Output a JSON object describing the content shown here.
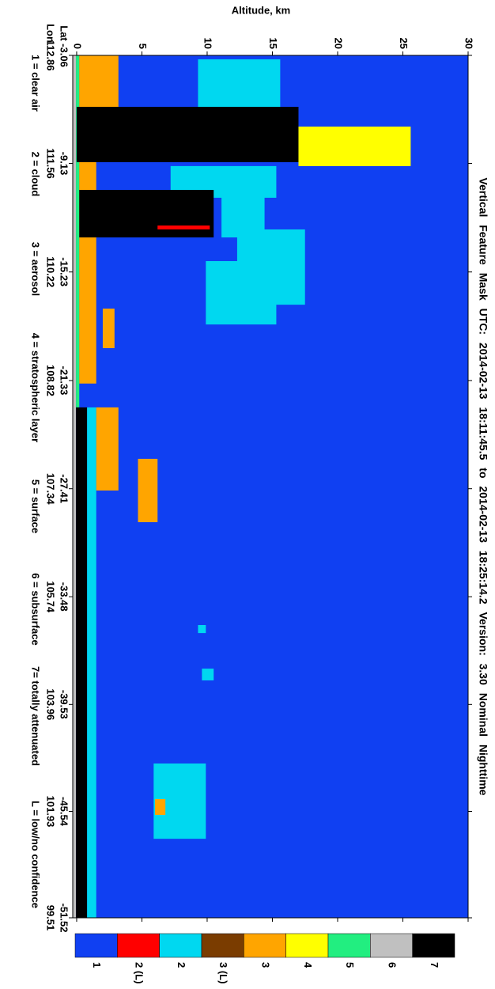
{
  "chart_data": {
    "type": "curtain",
    "title": "Vertical Feature Mask UTC: 2014-02-13 18:11:45.5 to 2014-02-13 18:25:14.2 Version: 3.30 Nominal Nighttime",
    "ylabel": "Altitude, km",
    "xlabel": [
      "Lat",
      "Lon"
    ],
    "xlim": [
      -3.06,
      -51.52
    ],
    "xticks": [
      -3.06,
      -9.13,
      -15.23,
      -21.33,
      -27.41,
      -33.48,
      -39.53,
      -45.54,
      -51.52
    ],
    "lon_ticks": [
      112.86,
      111.56,
      110.22,
      108.82,
      107.34,
      105.74,
      103.96,
      101.93,
      99.51
    ],
    "ylim": [
      -0.3,
      30
    ],
    "yticks": [
      0,
      5,
      10,
      15,
      20,
      25,
      30
    ],
    "legend_text": [
      "1 = clear air",
      "2 = cloud",
      "3 = aerosol",
      "4 = stratospheric layer",
      "5 = surface",
      "6 = subsurface",
      "7= totally attenuated",
      "L = low/no confidence"
    ],
    "colorbar": [
      {
        "label": "1",
        "color": "#1040f2"
      },
      {
        "label": "2 (L)",
        "color": "#ff0000"
      },
      {
        "label": "2",
        "color": "#00d8f0"
      },
      {
        "label": "3 (L)",
        "color": "#7a3c00"
      },
      {
        "label": "3",
        "color": "#ffa500"
      },
      {
        "label": "4",
        "color": "#ffff00"
      },
      {
        "label": "5",
        "color": "#22ee80"
      },
      {
        "label": "6",
        "color": "#c0c0c0"
      },
      {
        "label": "7",
        "color": "#000000"
      }
    ],
    "features": [
      {
        "class": 7,
        "lat": [
          -3.06,
          -51.52
        ],
        "alt": [
          -0.3,
          -0.05
        ]
      },
      {
        "class": 6,
        "lat": [
          -3.06,
          -22.84
        ],
        "alt": [
          -0.05,
          0.2
        ]
      },
      {
        "class": 4,
        "lat": [
          -3.06,
          -5.95
        ],
        "alt": [
          0.2,
          3.2
        ]
      },
      {
        "class": 4,
        "lat": [
          -9.06,
          -21.5
        ],
        "alt": [
          0.2,
          1.5
        ]
      },
      {
        "class": 2,
        "lat": [
          -3.28,
          -5.95
        ],
        "alt": [
          9.3,
          15.6
        ]
      },
      {
        "class": 8,
        "lat": [
          -5.95,
          -9.06
        ],
        "alt": [
          0,
          17
        ]
      },
      {
        "class": 5,
        "lat": [
          -7.06,
          -9.28
        ],
        "alt": [
          17,
          25.6
        ]
      },
      {
        "class": 2,
        "lat": [
          -9.28,
          -11.06
        ],
        "alt": [
          7.2,
          15.3
        ]
      },
      {
        "class": 2,
        "lat": [
          -10.17,
          -13.29
        ],
        "alt": [
          11.1,
          14.4
        ]
      },
      {
        "class": 8,
        "lat": [
          -10.62,
          -13.29
        ],
        "alt": [
          0.2,
          10.5
        ]
      },
      {
        "class": 1,
        "lat": [
          -12.62,
          -12.84
        ],
        "alt": [
          6.2,
          10.2
        ]
      },
      {
        "class": 2,
        "lat": [
          -12.84,
          -17.07
        ],
        "alt": [
          12.3,
          17.5
        ]
      },
      {
        "class": 2,
        "lat": [
          -14.62,
          -18.18
        ],
        "alt": [
          9.9,
          15.3
        ]
      },
      {
        "class": 4,
        "lat": [
          -17.29,
          -19.51
        ],
        "alt": [
          2.0,
          2.9
        ]
      },
      {
        "class": 8,
        "lat": [
          -22.84,
          -51.52
        ],
        "alt": [
          -0.05,
          0.8
        ]
      },
      {
        "class": 2,
        "lat": [
          -22.84,
          -51.52
        ],
        "alt": [
          0.8,
          1.5
        ]
      },
      {
        "class": 4,
        "lat": [
          -22.84,
          -27.51
        ],
        "alt": [
          1.5,
          3.2
        ]
      },
      {
        "class": 4,
        "lat": [
          -25.73,
          -29.29
        ],
        "alt": [
          4.7,
          6.2
        ]
      },
      {
        "class": 2,
        "lat": [
          -35.07,
          -35.52
        ],
        "alt": [
          9.3,
          9.9
        ]
      },
      {
        "class": 2,
        "lat": [
          -37.52,
          -38.18
        ],
        "alt": [
          9.6,
          10.5
        ]
      },
      {
        "class": 2,
        "lat": [
          -42.85,
          -47.08
        ],
        "alt": [
          5.9,
          9.9
        ]
      },
      {
        "class": 4,
        "lat": [
          -44.85,
          -45.74
        ],
        "alt": [
          6.0,
          6.8
        ]
      }
    ]
  }
}
